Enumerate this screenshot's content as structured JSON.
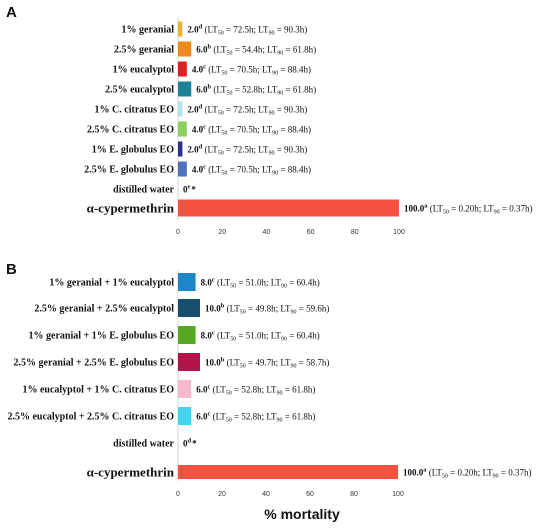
{
  "chart_data": [
    {
      "type": "bar",
      "orientation": "horizontal",
      "panel": "A",
      "categories": [
        "1% geranial",
        "2.5% geranial",
        "1% eucalyptol",
        "2.5% eucalyptol",
        "1% C. citratus EO",
        "2.5% C. citratus EO",
        "1% E. globulus EO",
        "2.5% E. globulus EO",
        "distilled water",
        "α-cypermethrin"
      ],
      "values": [
        2.0,
        6.0,
        4.0,
        6.0,
        2.0,
        4.0,
        2.0,
        4.0,
        0,
        100.0
      ],
      "colors": [
        "#E8B331",
        "#EF8A1C",
        "#E21F26",
        "#1E8296",
        "#B2E2EC",
        "#8CD15F",
        "#2E2F8F",
        "#4F71BE",
        "#FFFFFF",
        "#F4533F"
      ],
      "value_labels": [
        {
          "v": "2.0",
          "sup": "d",
          "lt50": "72.5h",
          "lt90": "90.3h"
        },
        {
          "v": "6.0",
          "sup": "b",
          "lt50": "54.4h",
          "lt90": "61.8h"
        },
        {
          "v": "4.0",
          "sup": "c",
          "lt50": "70.5h",
          "lt90": "88.4h"
        },
        {
          "v": "6.0",
          "sup": "b",
          "lt50": "52.8h",
          "lt90": "61.8h"
        },
        {
          "v": "2.0",
          "sup": "d",
          "lt50": "72.5h",
          "lt90": "90.3h"
        },
        {
          "v": "4.0",
          "sup": "c",
          "lt50": "70.5h",
          "lt90": "88.4h"
        },
        {
          "v": "2.0",
          "sup": "d",
          "lt50": "72.5h",
          "lt90": "90.3h"
        },
        {
          "v": "4.0",
          "sup": "c",
          "lt50": "70.5h",
          "lt90": "88.4h"
        },
        {
          "v": "0",
          "sup": "e",
          "star": "*"
        },
        {
          "v": "100.0",
          "sup": "a",
          "lt50": "0.20h",
          "lt90": "0.37h"
        }
      ],
      "xlim": [
        0,
        100
      ],
      "xticks": [
        0,
        20,
        40,
        60,
        80,
        100
      ],
      "xlabel": "",
      "grid": false
    },
    {
      "type": "bar",
      "orientation": "horizontal",
      "panel": "B",
      "categories": [
        "1% geranial + 1% eucalyptol",
        "2.5% geranial + 2.5% eucalyptol",
        "1% geranial + 1% E. globulus EO",
        "2.5% geranial + 2.5% E. globulus EO",
        "1% eucalyptol + 1% C. citratus EO",
        "2.5% eucalyptol + 2.5% C. citratus EO",
        "distilled water",
        "α-cypermethrin"
      ],
      "values": [
        8.0,
        10.0,
        8.0,
        10.0,
        6.0,
        6.0,
        0,
        100.0
      ],
      "colors": [
        "#1C86C8",
        "#17506C",
        "#55A820",
        "#B4124A",
        "#F6B9CF",
        "#3FD7EE",
        "#FFFFFF",
        "#F4533F"
      ],
      "value_labels": [
        {
          "v": "8.0",
          "sup": "c",
          "lt50": "51.0h",
          "lt90": "60.4h"
        },
        {
          "v": "10.0",
          "sup": "b",
          "lt50": "49.8h",
          "lt90": "59.6h"
        },
        {
          "v": "8.0",
          "sup": "c",
          "lt50": "51.0h",
          "lt90": "60.4h"
        },
        {
          "v": "10.0",
          "sup": "b",
          "lt50": "49.7h",
          "lt90": "58.7h"
        },
        {
          "v": "6.0",
          "sup": "c",
          "lt50": "52.8h",
          "lt90": "61.8h"
        },
        {
          "v": "6.0",
          "sup": "c",
          "lt50": "52.8h",
          "lt90": "61.8h"
        },
        {
          "v": "0",
          "sup": "d",
          "star": "*"
        },
        {
          "v": "100.0",
          "sup": "a",
          "lt50": "0.20h",
          "lt90": "0.37h"
        }
      ],
      "xlim": [
        0,
        100
      ],
      "xticks": [
        0,
        20,
        40,
        60,
        80,
        100
      ],
      "xlabel": "% mortality",
      "grid": false
    }
  ]
}
